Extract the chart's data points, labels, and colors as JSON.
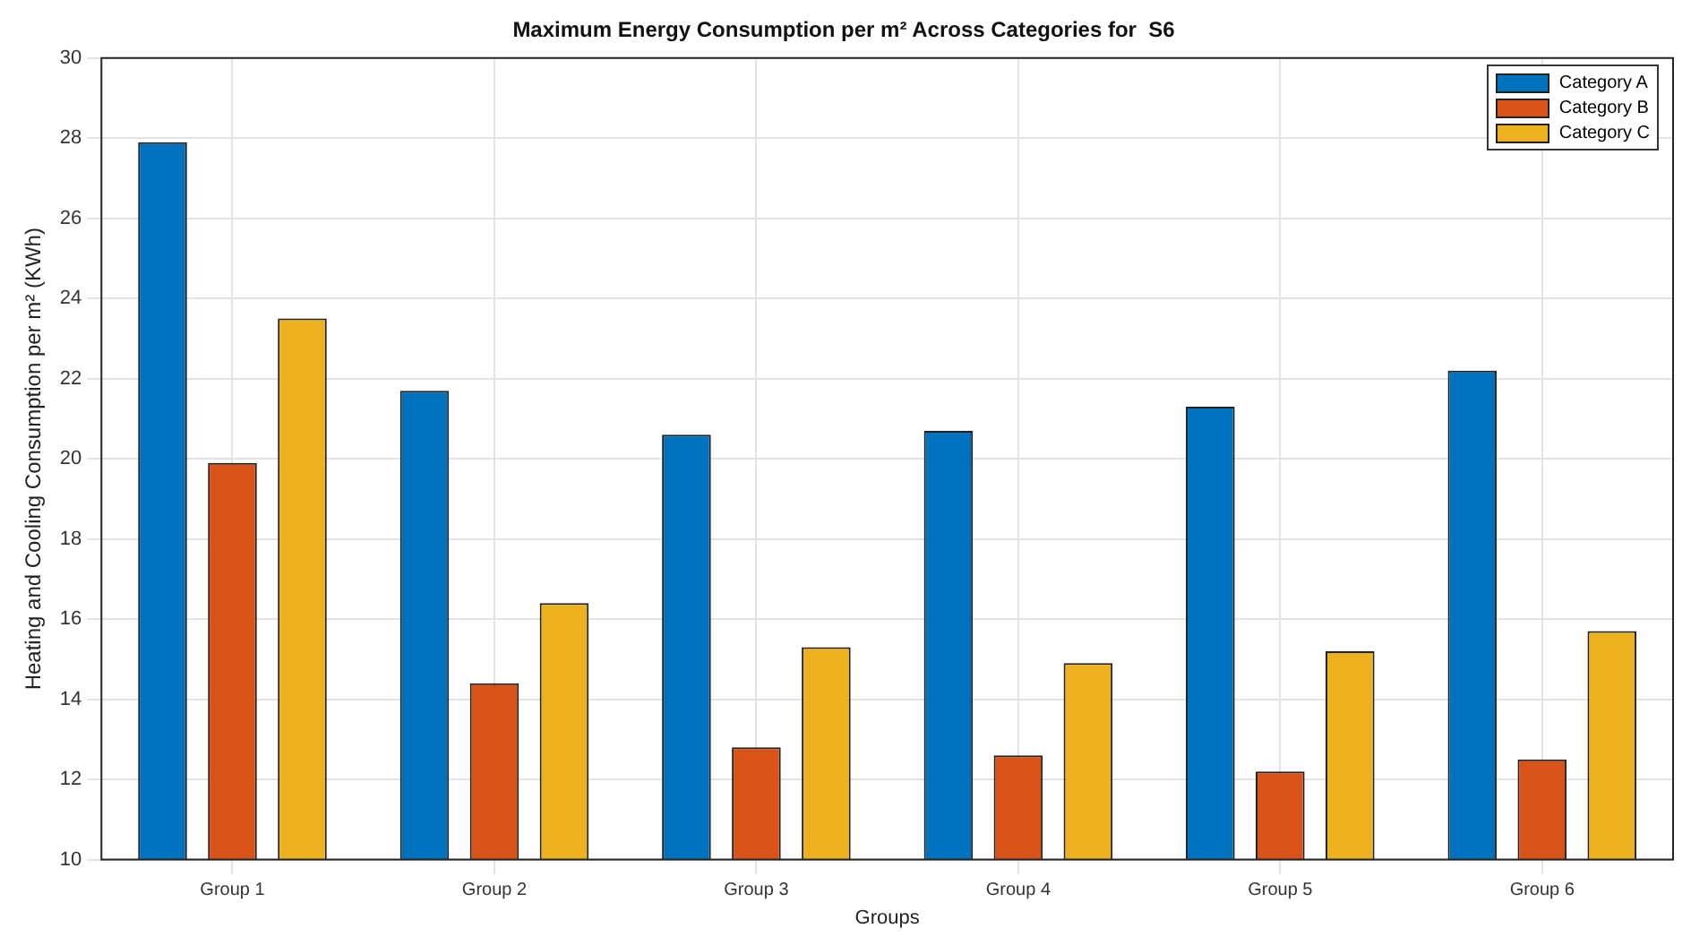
{
  "chart_data": {
    "type": "bar",
    "title": "Maximum Energy Consumption per m² Across Categories for  S6",
    "xlabel": "Groups",
    "ylabel": "Heating and Cooling Consumption per m² (KWh)",
    "categories": [
      "Group 1",
      "Group 2",
      "Group 3",
      "Group 4",
      "Group 5",
      "Group 6"
    ],
    "series": [
      {
        "name": "Category A",
        "color": "#0072bd",
        "values": [
          27.9,
          21.7,
          20.6,
          20.7,
          21.3,
          22.2
        ]
      },
      {
        "name": "Category B",
        "color": "#d95319",
        "values": [
          19.9,
          14.4,
          12.8,
          12.6,
          12.2,
          12.5
        ]
      },
      {
        "name": "Category C",
        "color": "#edb120",
        "values": [
          23.5,
          16.4,
          15.3,
          14.9,
          15.2,
          15.7
        ]
      }
    ],
    "ylim": [
      10,
      30
    ],
    "yticks": [
      10,
      12,
      14,
      16,
      18,
      20,
      22,
      24,
      26,
      28,
      30
    ],
    "grid": true,
    "legend": "top right"
  }
}
